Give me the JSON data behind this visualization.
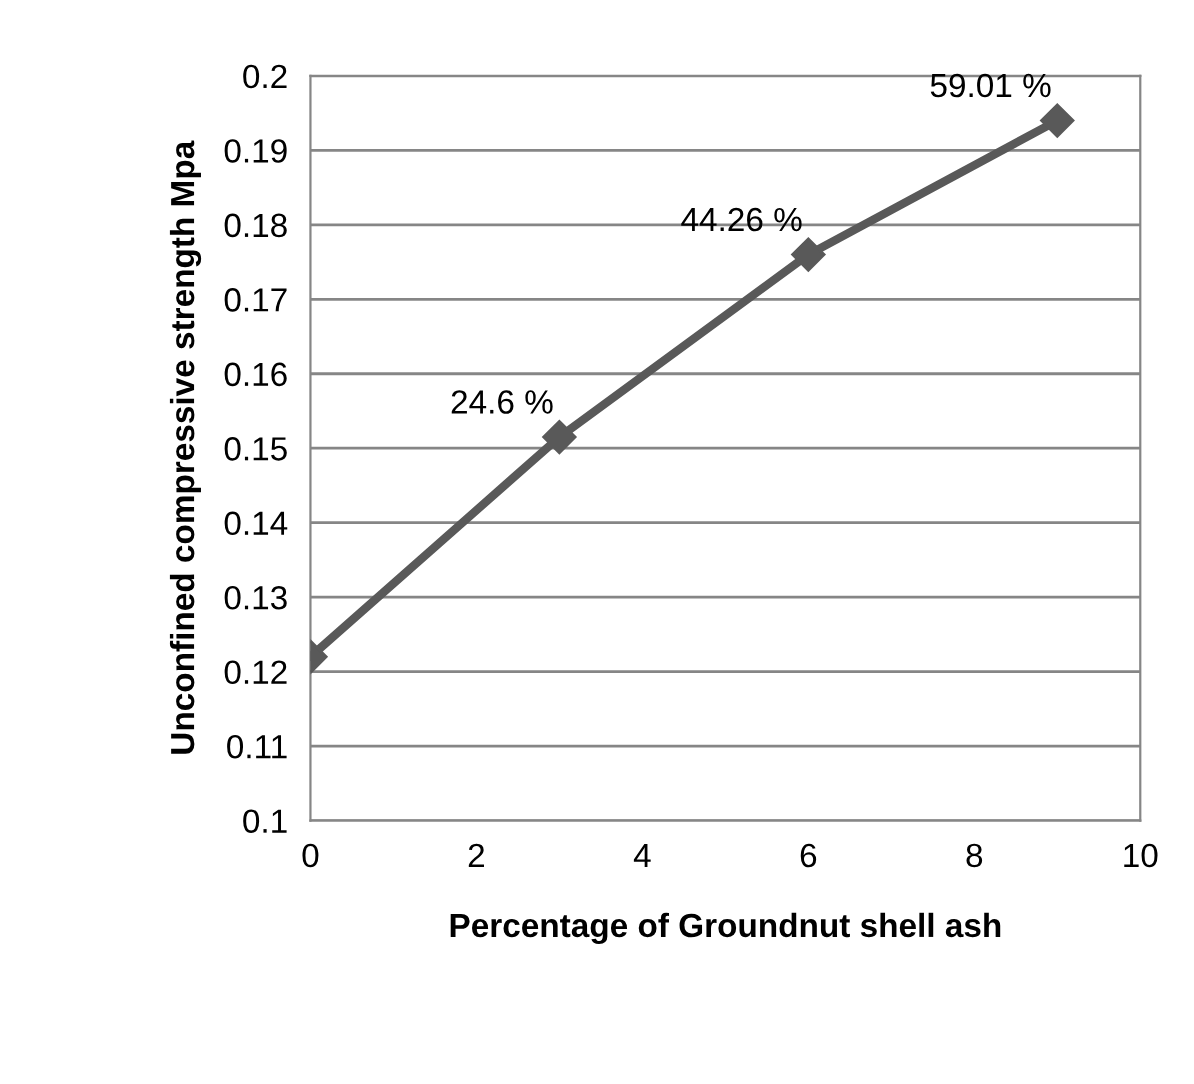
{
  "chart_data": {
    "type": "line",
    "xlabel": "Percentage of Groundnut shell ash",
    "ylabel": "Unconfined compressive strength Mpa",
    "x": [
      0,
      3,
      6,
      9
    ],
    "series": [
      {
        "color": "#595959",
        "values": [
          0.122,
          0.1515,
          0.176,
          0.194
        ]
      }
    ],
    "xlim": [
      0,
      10
    ],
    "xticks": [
      0,
      2,
      4,
      6,
      8,
      10
    ],
    "ylim": [
      0.1,
      0.2
    ],
    "yticks": [
      0.1,
      0.11,
      0.12,
      0.13,
      0.14,
      0.15,
      0.16,
      0.17,
      0.18,
      0.19,
      0.2
    ],
    "grid": "y",
    "marker": "diamond",
    "line_style": "solid",
    "legend": false,
    "annotations": [
      {
        "text": "24.6 %",
        "x": 3,
        "y": 0.1515
      },
      {
        "text": "44.26 %",
        "x": 6,
        "y": 0.176
      },
      {
        "text": "59.01 %",
        "x": 9,
        "y": 0.194
      }
    ]
  }
}
